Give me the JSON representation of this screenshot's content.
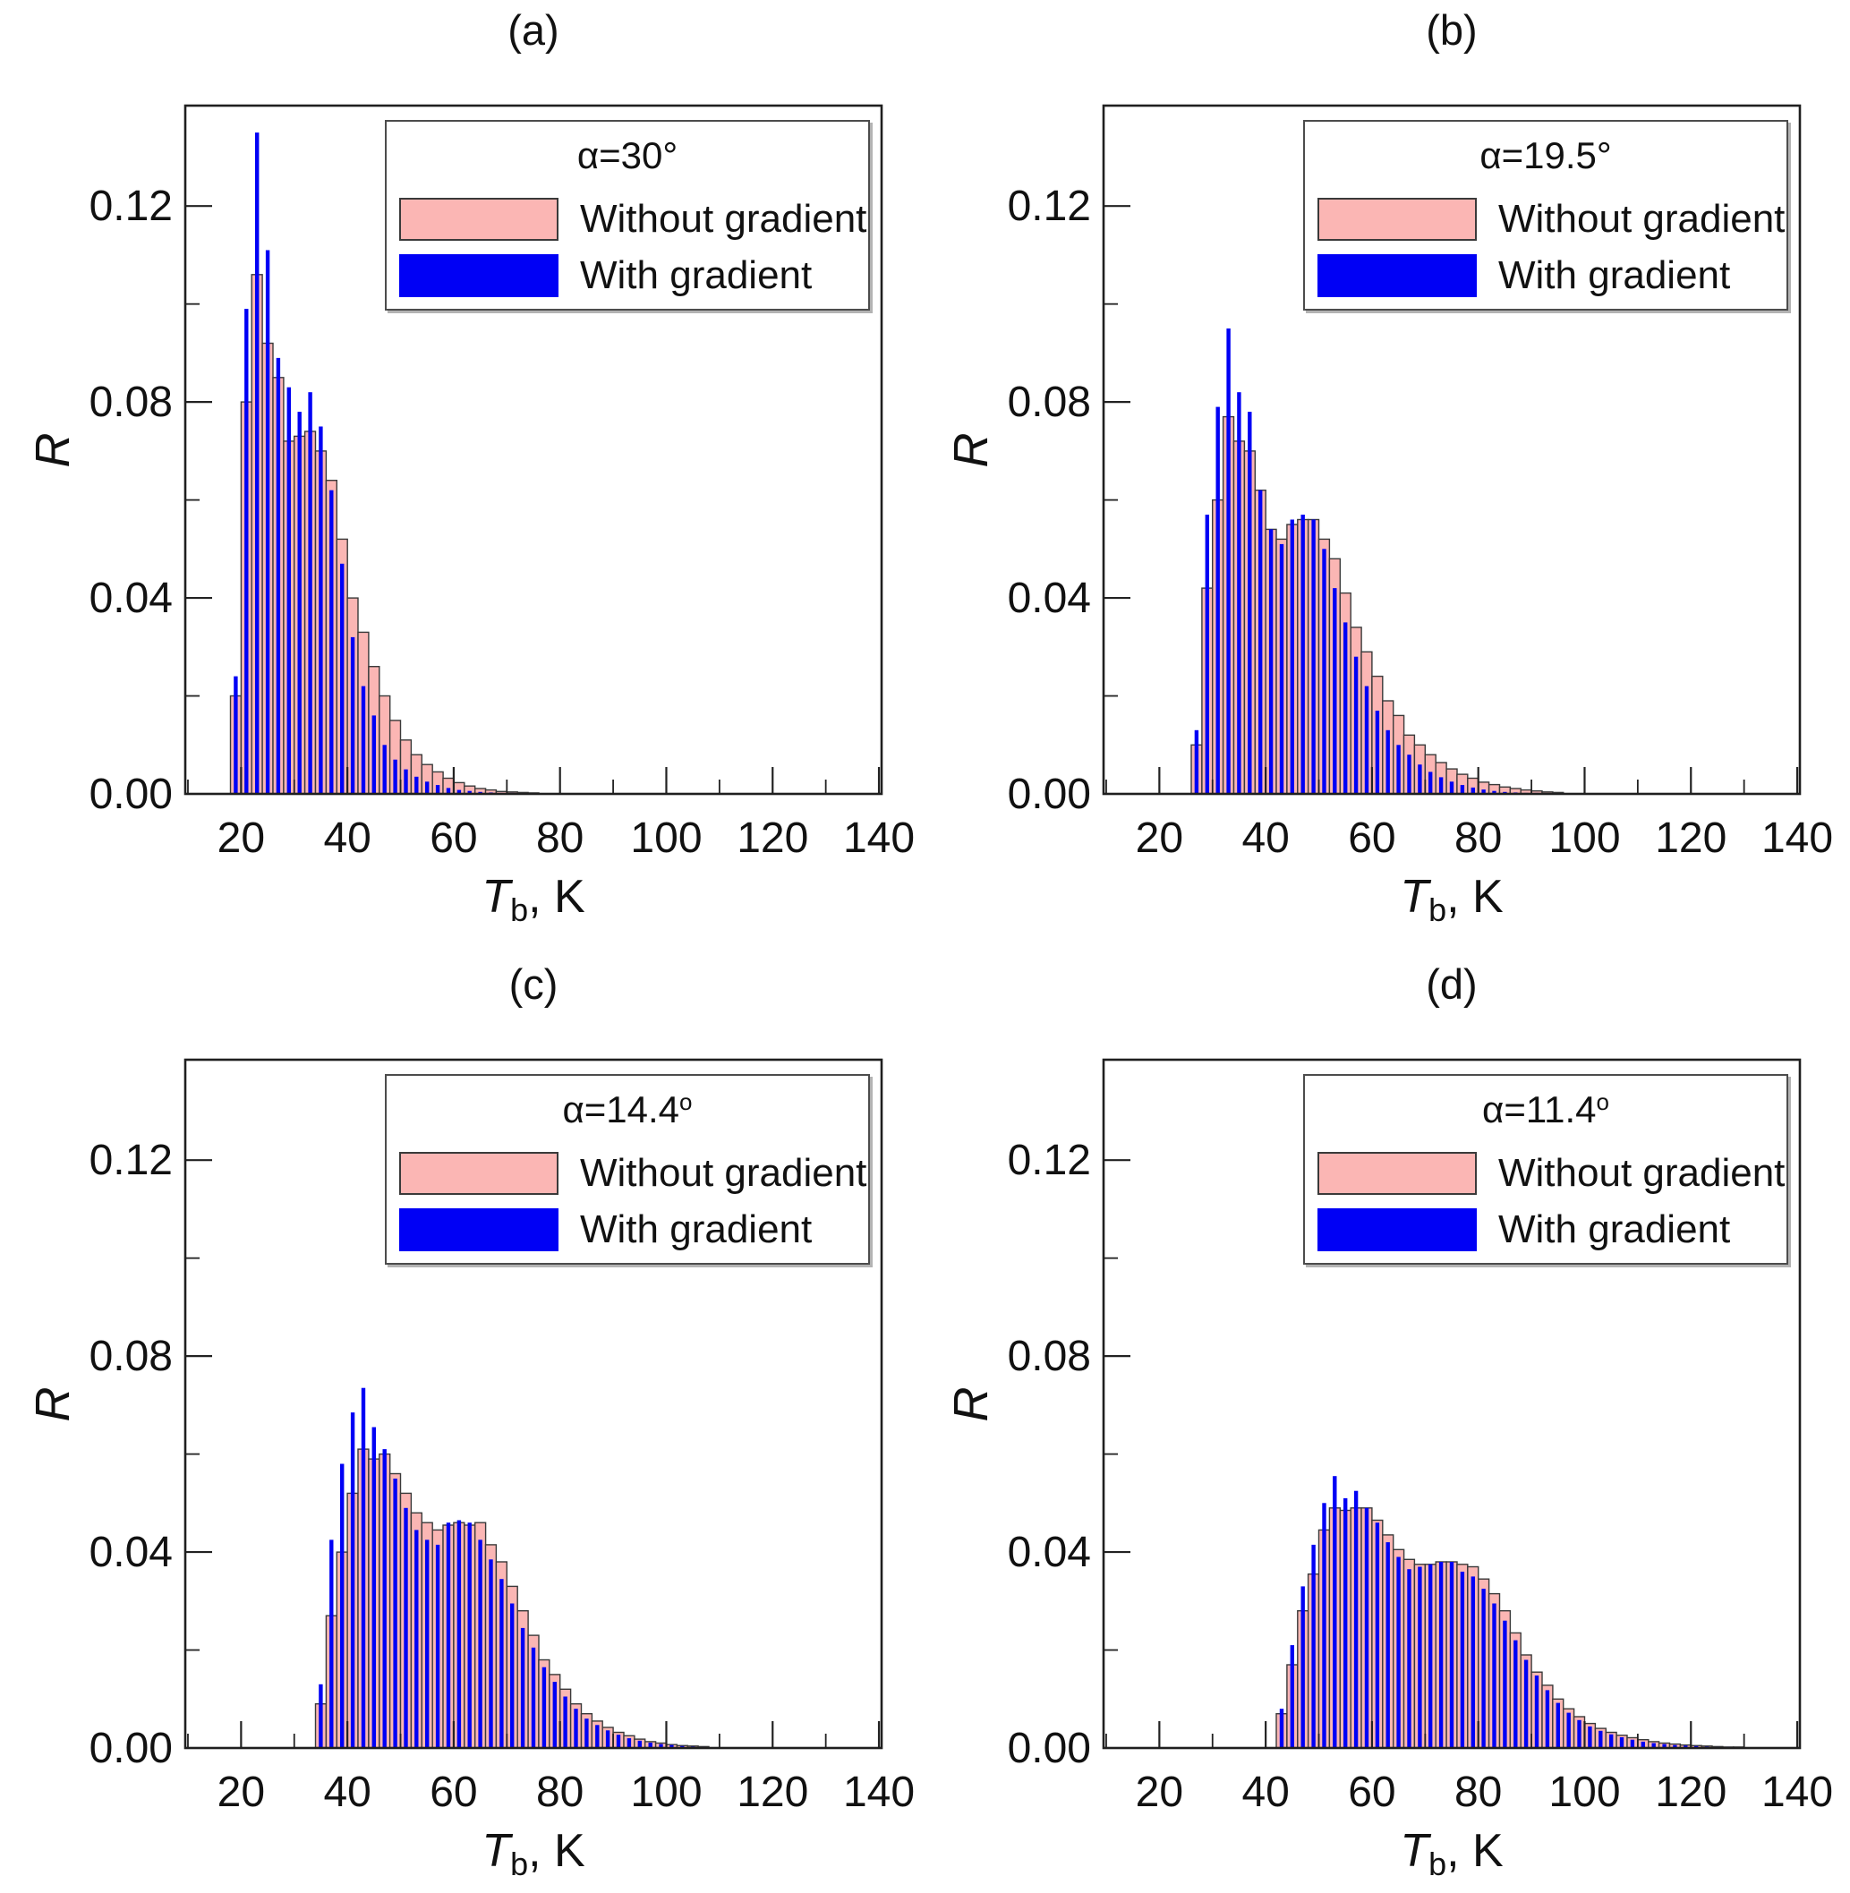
{
  "page": {
    "background": "#ffffff"
  },
  "axis_style": {
    "frame_color": "#1f1f1f",
    "tick_color": "#222222",
    "bar_edge_color": "#3a3a3a"
  },
  "chart_data": [
    {
      "id": "a",
      "type": "bar",
      "panel_label": "(a)",
      "legend": {
        "alpha_text": "α=30°",
        "degree_sup": "",
        "entries": [
          {
            "label": "Without gradient",
            "color": "#fbb6b4"
          },
          {
            "label": "With gradient",
            "color": "#0000f5"
          }
        ]
      },
      "xlabel": "T_b, K",
      "xlabel_parts": {
        "symbol": "T",
        "subscript": "b",
        "suffix": ", K"
      },
      "ylabel": "R",
      "bin_start": 18,
      "bin_width": 2,
      "xlim": [
        9.5,
        140.5
      ],
      "ylim": [
        0,
        0.1405
      ],
      "xticks_major": [
        20,
        40,
        60,
        80,
        100,
        120,
        140
      ],
      "xtick_labels": [
        "20",
        "40",
        "60",
        "80",
        "100",
        "120",
        "140"
      ],
      "xticks_minor": [
        10,
        30,
        50,
        70,
        90,
        110,
        130
      ],
      "yticks_major": [
        0,
        0.04,
        0.08,
        0.12
      ],
      "ytick_labels": [
        "0.00",
        "0.04",
        "0.08",
        "0.12"
      ],
      "yticks_minor": [
        0.02,
        0.06,
        0.1
      ],
      "series": [
        {
          "name": "Without gradient",
          "values": [
            0.02,
            0.08,
            0.106,
            0.092,
            0.085,
            0.072,
            0.073,
            0.074,
            0.07,
            0.064,
            0.052,
            0.04,
            0.033,
            0.026,
            0.02,
            0.015,
            0.011,
            0.008,
            0.006,
            0.0045,
            0.0032,
            0.0023,
            0.0016,
            0.0011,
            0.0008,
            0.0005,
            0.0004,
            0.0003,
            0.0002
          ]
        },
        {
          "name": "With gradient",
          "values": [
            0.024,
            0.099,
            0.135,
            0.111,
            0.089,
            0.083,
            0.078,
            0.082,
            0.075,
            0.062,
            0.047,
            0.032,
            0.022,
            0.016,
            0.01,
            0.007,
            0.005,
            0.0035,
            0.0025,
            0.0018,
            0.0012,
            0.0008,
            0.0006,
            0.0004,
            0.0003,
            0.0002,
            0.0002,
            0.0001,
            0.0001
          ]
        }
      ]
    },
    {
      "id": "b",
      "type": "bar",
      "panel_label": "(b)",
      "legend": {
        "alpha_text": "α=19.5°",
        "degree_sup": "",
        "entries": [
          {
            "label": "Without gradient",
            "color": "#fbb6b4"
          },
          {
            "label": "With gradient",
            "color": "#0000f5"
          }
        ]
      },
      "xlabel": "T_b, K",
      "xlabel_parts": {
        "symbol": "T",
        "subscript": "b",
        "suffix": ", K"
      },
      "ylabel": "R",
      "bin_start": 26,
      "bin_width": 2,
      "xlim": [
        9.5,
        140.5
      ],
      "ylim": [
        0,
        0.1405
      ],
      "xticks_major": [
        20,
        40,
        60,
        80,
        100,
        120,
        140
      ],
      "xtick_labels": [
        "20",
        "40",
        "60",
        "80",
        "100",
        "120",
        "140"
      ],
      "xticks_minor": [
        10,
        30,
        50,
        70,
        90,
        110,
        130
      ],
      "yticks_major": [
        0,
        0.04,
        0.08,
        0.12
      ],
      "ytick_labels": [
        "0.00",
        "0.04",
        "0.08",
        "0.12"
      ],
      "yticks_minor": [
        0.02,
        0.06,
        0.1
      ],
      "series": [
        {
          "name": "Without gradient",
          "values": [
            0.01,
            0.042,
            0.06,
            0.077,
            0.072,
            0.07,
            0.062,
            0.054,
            0.052,
            0.055,
            0.056,
            0.056,
            0.052,
            0.048,
            0.041,
            0.034,
            0.029,
            0.024,
            0.019,
            0.016,
            0.012,
            0.01,
            0.008,
            0.0064,
            0.0051,
            0.004,
            0.0032,
            0.0024,
            0.0019,
            0.0014,
            0.0011,
            0.0008,
            0.0006,
            0.0004,
            0.0003
          ]
        },
        {
          "name": "With gradient",
          "values": [
            0.013,
            0.057,
            0.079,
            0.095,
            0.082,
            0.078,
            0.062,
            0.054,
            0.051,
            0.056,
            0.057,
            0.056,
            0.05,
            0.042,
            0.035,
            0.028,
            0.022,
            0.017,
            0.013,
            0.01,
            0.008,
            0.006,
            0.0045,
            0.0034,
            0.0025,
            0.0018,
            0.0013,
            0.0009,
            0.0006,
            0.0004,
            0.0003,
            0.0002,
            0.0002,
            0.0001,
            0.0001
          ]
        }
      ]
    },
    {
      "id": "c",
      "type": "bar",
      "panel_label": "(c)",
      "legend": {
        "alpha_text": "α=14.4",
        "degree_sup": "o",
        "entries": [
          {
            "label": "Without gradient",
            "color": "#fbb6b4"
          },
          {
            "label": "With gradient",
            "color": "#0000f5"
          }
        ]
      },
      "xlabel": "T_b, K",
      "xlabel_parts": {
        "symbol": "T",
        "subscript": "b",
        "suffix": ", K"
      },
      "ylabel": "R",
      "bin_start": 34,
      "bin_width": 2,
      "xlim": [
        9.5,
        140.5
      ],
      "ylim": [
        0,
        0.1405
      ],
      "xticks_major": [
        20,
        40,
        60,
        80,
        100,
        120,
        140
      ],
      "xtick_labels": [
        "20",
        "40",
        "60",
        "80",
        "100",
        "120",
        "140"
      ],
      "xticks_minor": [
        10,
        30,
        50,
        70,
        90,
        110,
        130
      ],
      "yticks_major": [
        0,
        0.04,
        0.08,
        0.12
      ],
      "ytick_labels": [
        "0.00",
        "0.04",
        "0.08",
        "0.12"
      ],
      "yticks_minor": [
        0.02,
        0.06,
        0.1
      ],
      "series": [
        {
          "name": "Without gradient",
          "values": [
            0.009,
            0.027,
            0.04,
            0.052,
            0.061,
            0.059,
            0.06,
            0.056,
            0.052,
            0.048,
            0.046,
            0.0445,
            0.0455,
            0.046,
            0.0455,
            0.046,
            0.0415,
            0.038,
            0.033,
            0.028,
            0.023,
            0.018,
            0.015,
            0.012,
            0.009,
            0.007,
            0.0055,
            0.0042,
            0.0032,
            0.0025,
            0.0018,
            0.0013,
            0.001,
            0.0007,
            0.0005,
            0.0004,
            0.0003
          ]
        },
        {
          "name": "With gradient",
          "values": [
            0.013,
            0.0425,
            0.058,
            0.0685,
            0.0735,
            0.0655,
            0.061,
            0.055,
            0.049,
            0.0445,
            0.0425,
            0.0415,
            0.046,
            0.0465,
            0.046,
            0.0425,
            0.0385,
            0.0345,
            0.0295,
            0.0245,
            0.0205,
            0.0165,
            0.0135,
            0.0105,
            0.008,
            0.006,
            0.0047,
            0.0036,
            0.0027,
            0.002,
            0.0015,
            0.0011,
            0.0008,
            0.0006,
            0.0004,
            0.0003,
            0.0002
          ]
        }
      ]
    },
    {
      "id": "d",
      "type": "bar",
      "panel_label": "(d)",
      "legend": {
        "alpha_text": "α=11.4",
        "degree_sup": "o",
        "entries": [
          {
            "label": "Without gradient",
            "color": "#fbb6b4"
          },
          {
            "label": "With gradient",
            "color": "#0000f5"
          }
        ]
      },
      "xlabel": "T_b, K",
      "xlabel_parts": {
        "symbol": "T",
        "subscript": "b",
        "suffix": ", K"
      },
      "ylabel": "R",
      "bin_start": 42,
      "bin_width": 2,
      "xlim": [
        9.5,
        140.5
      ],
      "ylim": [
        0,
        0.1405
      ],
      "xticks_major": [
        20,
        40,
        60,
        80,
        100,
        120,
        140
      ],
      "xtick_labels": [
        "20",
        "40",
        "60",
        "80",
        "100",
        "120",
        "140"
      ],
      "xticks_minor": [
        10,
        30,
        50,
        70,
        90,
        110,
        130
      ],
      "yticks_major": [
        0,
        0.04,
        0.08,
        0.12
      ],
      "ytick_labels": [
        "0.00",
        "0.04",
        "0.08",
        "0.12"
      ],
      "yticks_minor": [
        0.02,
        0.06,
        0.1
      ],
      "series": [
        {
          "name": "Without gradient",
          "values": [
            0.007,
            0.017,
            0.028,
            0.0355,
            0.0445,
            0.049,
            0.0485,
            0.049,
            0.049,
            0.0465,
            0.0435,
            0.0405,
            0.0385,
            0.0375,
            0.0375,
            0.038,
            0.038,
            0.0375,
            0.037,
            0.0345,
            0.0315,
            0.028,
            0.0235,
            0.019,
            0.0155,
            0.0128,
            0.01,
            0.008,
            0.0064,
            0.005,
            0.004,
            0.0032,
            0.0026,
            0.0021,
            0.0017,
            0.0013,
            0.001,
            0.0008,
            0.0006,
            0.0005,
            0.0004,
            0.0003,
            0.0002,
            0.0002
          ]
        },
        {
          "name": "With gradient",
          "values": [
            0.008,
            0.021,
            0.033,
            0.0415,
            0.05,
            0.0555,
            0.051,
            0.0525,
            0.049,
            0.046,
            0.042,
            0.039,
            0.0365,
            0.037,
            0.0375,
            0.038,
            0.038,
            0.036,
            0.035,
            0.0325,
            0.0295,
            0.026,
            0.022,
            0.018,
            0.0148,
            0.0118,
            0.0092,
            0.0072,
            0.0057,
            0.0044,
            0.0035,
            0.0028,
            0.0022,
            0.0017,
            0.0013,
            0.001,
            0.0008,
            0.0006,
            0.0005,
            0.0004,
            0.0003,
            0.0002,
            0.0002,
            0.0001
          ]
        }
      ]
    }
  ]
}
